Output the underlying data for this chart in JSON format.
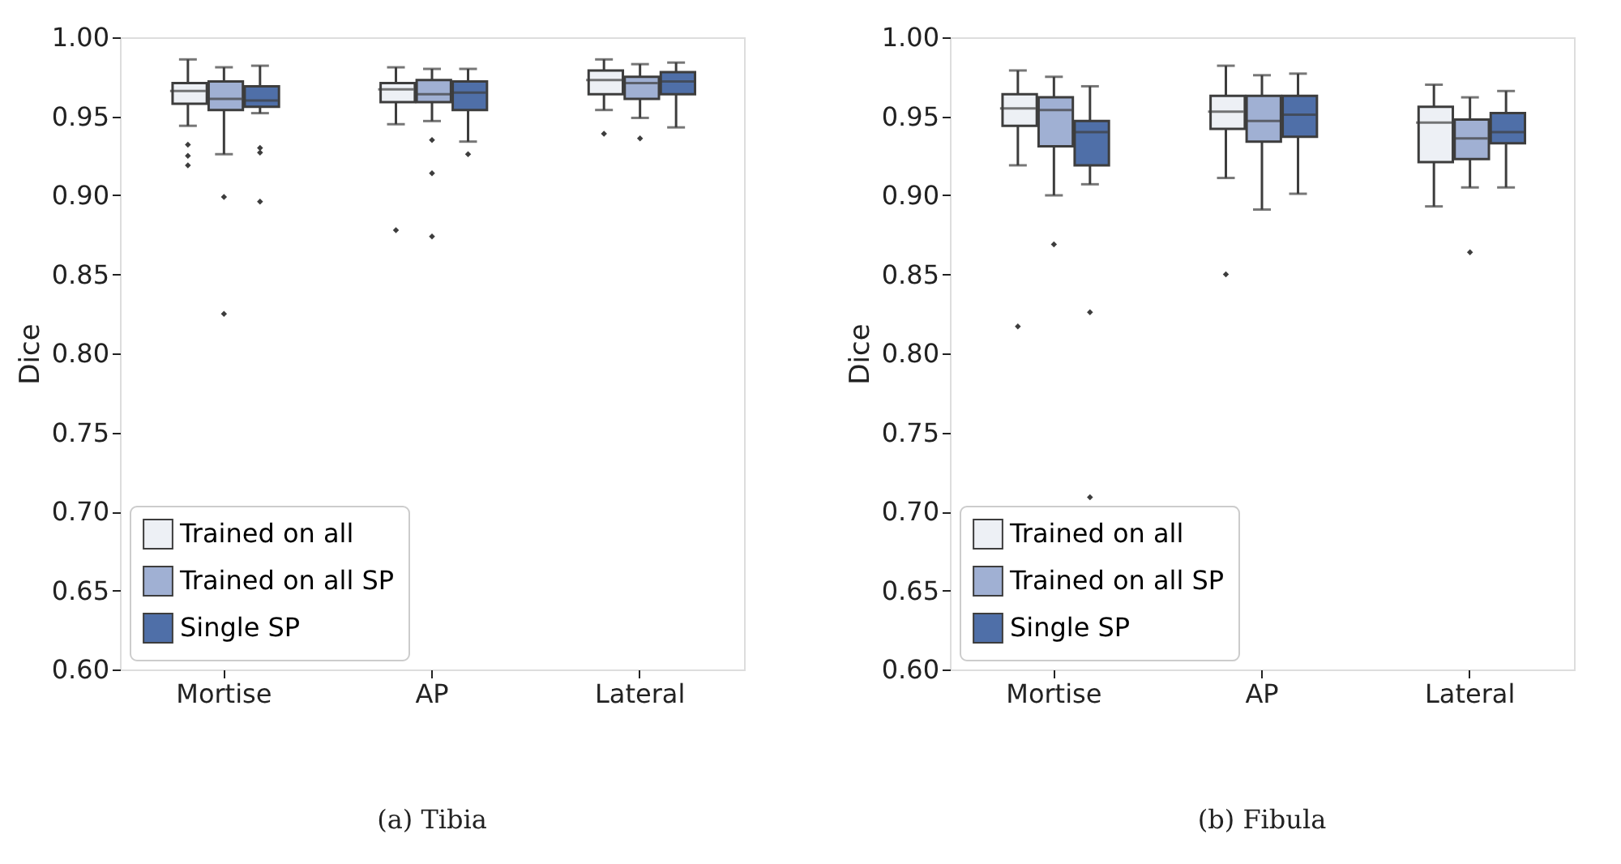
{
  "chart_data": [
    {
      "type": "box",
      "title": "(a) Tibia",
      "ylabel": "Dice",
      "categories": [
        "Mortise",
        "AP",
        "Lateral"
      ],
      "ylim": [
        0.6,
        1.0
      ],
      "yticks": [
        {
          "value": 0.6,
          "label": "0.60"
        },
        {
          "value": 0.65,
          "label": "0.65"
        },
        {
          "value": 0.7,
          "label": "0.70"
        },
        {
          "value": 0.75,
          "label": "0.75"
        },
        {
          "value": 0.8,
          "label": "0.80"
        },
        {
          "value": 0.85,
          "label": "0.85"
        },
        {
          "value": 0.9,
          "label": "0.90"
        },
        {
          "value": 0.95,
          "label": "0.95"
        },
        {
          "value": 1.0,
          "label": "1.00"
        }
      ],
      "legend": "bottom left",
      "grid": false,
      "series": [
        {
          "name": "Trained on all",
          "color": "#edf0f5",
          "boxes": [
            {
              "low": 0.944,
              "q1": 0.958,
              "median": 0.966,
              "q3": 0.971,
              "high": 0.986,
              "outliers": [
                0.932,
                0.925,
                0.919
              ]
            },
            {
              "low": 0.945,
              "q1": 0.959,
              "median": 0.967,
              "q3": 0.971,
              "high": 0.981,
              "outliers": [
                0.878
              ]
            },
            {
              "low": 0.954,
              "q1": 0.964,
              "median": 0.973,
              "q3": 0.979,
              "high": 0.986,
              "outliers": [
                0.939
              ]
            }
          ]
        },
        {
          "name": "Trained on all SP",
          "color": "#a0b0d3",
          "boxes": [
            {
              "low": 0.926,
              "q1": 0.954,
              "median": 0.961,
              "q3": 0.972,
              "high": 0.981,
              "outliers": [
                0.899,
                0.825
              ]
            },
            {
              "low": 0.947,
              "q1": 0.959,
              "median": 0.964,
              "q3": 0.973,
              "high": 0.98,
              "outliers": [
                0.935,
                0.914,
                0.874
              ]
            },
            {
              "low": 0.949,
              "q1": 0.961,
              "median": 0.971,
              "q3": 0.975,
              "high": 0.983,
              "outliers": [
                0.936
              ]
            }
          ]
        },
        {
          "name": "Single SP",
          "color": "#4f6fa8",
          "boxes": [
            {
              "low": 0.952,
              "q1": 0.956,
              "median": 0.96,
              "q3": 0.969,
              "high": 0.982,
              "outliers": [
                0.93,
                0.927,
                0.896
              ]
            },
            {
              "low": 0.934,
              "q1": 0.954,
              "median": 0.965,
              "q3": 0.972,
              "high": 0.98,
              "outliers": [
                0.926
              ]
            },
            {
              "low": 0.943,
              "q1": 0.964,
              "median": 0.972,
              "q3": 0.978,
              "high": 0.984
            }
          ]
        }
      ]
    },
    {
      "type": "box",
      "title": "(b) Fibula",
      "ylabel": "Dice",
      "categories": [
        "Mortise",
        "AP",
        "Lateral"
      ],
      "ylim": [
        0.6,
        1.0
      ],
      "yticks": [
        {
          "value": 0.6,
          "label": "0.60"
        },
        {
          "value": 0.65,
          "label": "0.65"
        },
        {
          "value": 0.7,
          "label": "0.70"
        },
        {
          "value": 0.75,
          "label": "0.75"
        },
        {
          "value": 0.8,
          "label": "0.80"
        },
        {
          "value": 0.85,
          "label": "0.85"
        },
        {
          "value": 0.9,
          "label": "0.90"
        },
        {
          "value": 0.95,
          "label": "0.95"
        },
        {
          "value": 1.0,
          "label": "1.00"
        }
      ],
      "legend": "bottom left",
      "grid": false,
      "series": [
        {
          "name": "Trained on all",
          "color": "#edf0f5",
          "boxes": [
            {
              "low": 0.919,
              "q1": 0.944,
              "median": 0.955,
              "q3": 0.964,
              "high": 0.979,
              "outliers": [
                0.817
              ]
            },
            {
              "low": 0.911,
              "q1": 0.942,
              "median": 0.953,
              "q3": 0.963,
              "high": 0.982,
              "outliers": [
                0.85
              ]
            },
            {
              "low": 0.893,
              "q1": 0.921,
              "median": 0.946,
              "q3": 0.956,
              "high": 0.97
            }
          ]
        },
        {
          "name": "Trained on all SP",
          "color": "#a0b0d3",
          "boxes": [
            {
              "low": 0.9,
              "q1": 0.931,
              "median": 0.954,
              "q3": 0.962,
              "high": 0.975,
              "outliers": [
                0.869
              ]
            },
            {
              "low": 0.891,
              "q1": 0.934,
              "median": 0.947,
              "q3": 0.963,
              "high": 0.976
            },
            {
              "low": 0.905,
              "q1": 0.923,
              "median": 0.936,
              "q3": 0.948,
              "high": 0.962,
              "outliers": [
                0.864
              ]
            }
          ]
        },
        {
          "name": "Single SP",
          "color": "#4f6fa8",
          "boxes": [
            {
              "low": 0.907,
              "q1": 0.919,
              "median": 0.94,
              "q3": 0.947,
              "high": 0.969,
              "outliers": [
                0.826,
                0.709
              ]
            },
            {
              "low": 0.901,
              "q1": 0.937,
              "median": 0.951,
              "q3": 0.963,
              "high": 0.977
            },
            {
              "low": 0.905,
              "q1": 0.933,
              "median": 0.94,
              "q3": 0.952,
              "high": 0.966
            }
          ]
        }
      ]
    }
  ]
}
